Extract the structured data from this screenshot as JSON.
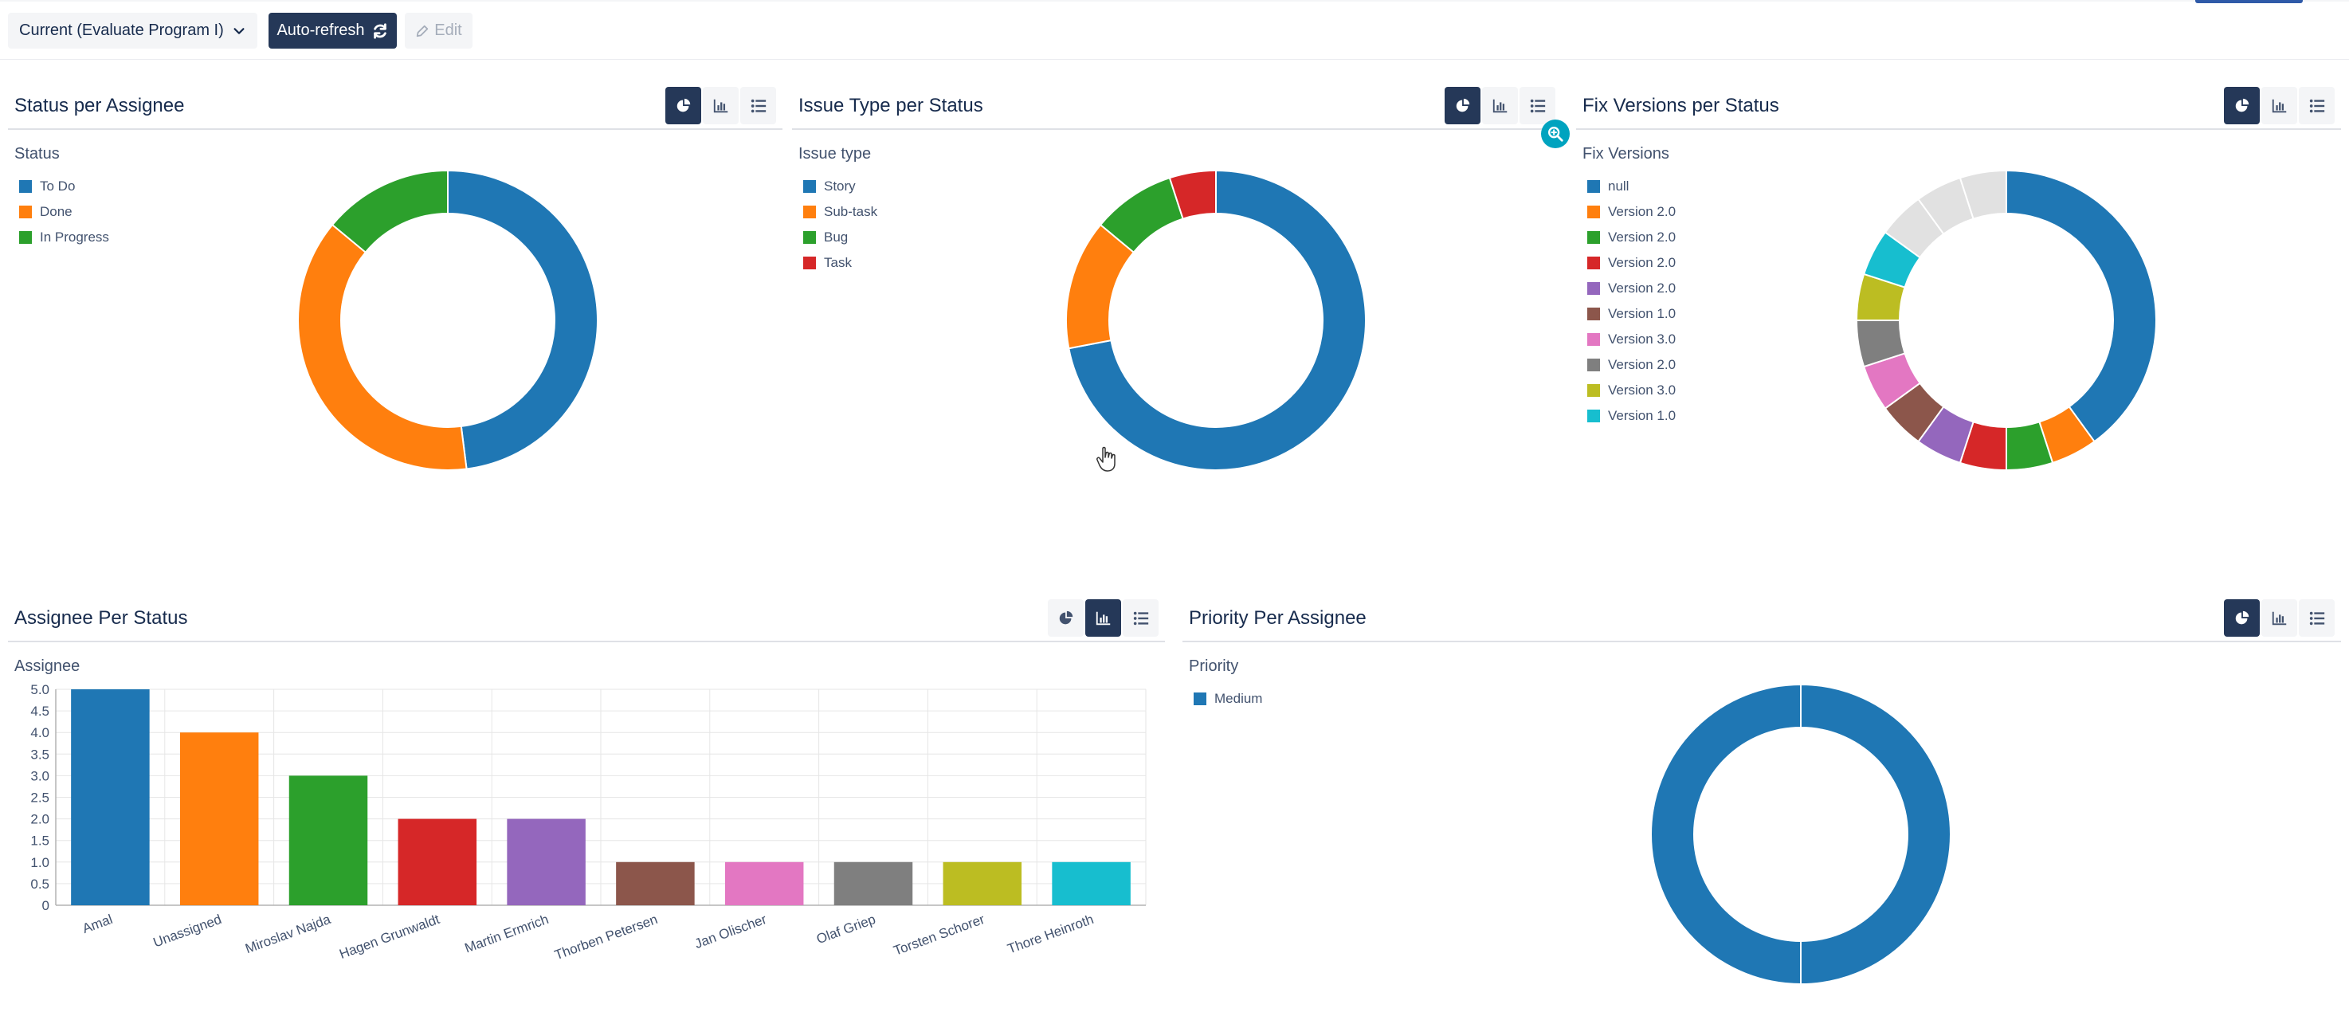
{
  "toolbar": {
    "filter": {
      "selected": "Current (Evaluate Program I)",
      "icon": "chevron-down-icon"
    },
    "refresh_label": "Auto-refresh",
    "refresh_icon": "refresh-icon",
    "edit_label": "Edit",
    "edit_icon": "pencil-icon"
  },
  "view_icons": [
    "pie-chart-icon",
    "bar-chart-icon",
    "list-icon"
  ],
  "panels": [
    {
      "id": "status-per-assignee",
      "title": "Status per Assignee",
      "active_view": "pie",
      "chart_data": {
        "type": "pie",
        "title": "Status",
        "legend": "top-left",
        "donut": true,
        "slices": [
          {
            "label": "To Do",
            "value": 48,
            "color": "#1f77b4"
          },
          {
            "label": "Done",
            "value": 38,
            "color": "#ff7f0e"
          },
          {
            "label": "In Progress",
            "value": 14,
            "color": "#2ca02c"
          }
        ]
      }
    },
    {
      "id": "issue-type-per-status",
      "title": "Issue Type per Status",
      "active_view": "pie",
      "chart_data": {
        "type": "pie",
        "title": "Issue type",
        "legend": "top-left",
        "donut": true,
        "slices": [
          {
            "label": "Story",
            "value": 72,
            "color": "#1f77b4"
          },
          {
            "label": "Sub-task",
            "value": 14,
            "color": "#ff7f0e"
          },
          {
            "label": "Bug",
            "value": 9,
            "color": "#2ca02c"
          },
          {
            "label": "Task",
            "value": 5,
            "color": "#d62728"
          }
        ]
      }
    },
    {
      "id": "fix-versions-per-status",
      "title": "Fix Versions per Status",
      "active_view": "pie",
      "chart_data": {
        "type": "pie",
        "title": "Fix Versions",
        "legend": "top-left",
        "donut": true,
        "slices": [
          {
            "label": "null",
            "value": 40,
            "color": "#1f77b4"
          },
          {
            "label": "Version 2.0",
            "value": 5,
            "color": "#ff7f0e"
          },
          {
            "label": "Version 2.0",
            "value": 5,
            "color": "#2ca02c"
          },
          {
            "label": "Version 2.0",
            "value": 5,
            "color": "#d62728"
          },
          {
            "label": "Version 2.0",
            "value": 5,
            "color": "#9467bd"
          },
          {
            "label": "Version 1.0",
            "value": 5,
            "color": "#8c564b"
          },
          {
            "label": "Version 3.0",
            "value": 5,
            "color": "#e377c2"
          },
          {
            "label": "Version 2.0",
            "value": 5,
            "color": "#7f7f7f"
          },
          {
            "label": "Version 3.0",
            "value": 5,
            "color": "#bcbd22"
          },
          {
            "label": "Version 1.0",
            "value": 5,
            "color": "#17becf"
          },
          {
            "label": "",
            "value": 5,
            "color": "#e1e1e1"
          },
          {
            "label": "",
            "value": 5,
            "color": "#e1e1e1"
          },
          {
            "label": "",
            "value": 5,
            "color": "#e1e1e1"
          }
        ]
      }
    },
    {
      "id": "assignee-per-status",
      "title": "Assignee Per Status",
      "active_view": "bar",
      "chart_data": {
        "type": "bar",
        "title": "Assignee",
        "grid": true,
        "ylim": [
          0,
          5
        ],
        "yticks": [
          "5.0",
          "4.5",
          "4.0",
          "3.5",
          "3.0",
          "2.5",
          "2.0",
          "1.5",
          "1.0",
          "0.5",
          "0"
        ],
        "categories": [
          "Amal",
          "Unassigned",
          "Miroslav Najda",
          "Hagen Grunwaldt",
          "Martin Ermrich",
          "Thorben Petersen",
          "Jan Olischer",
          "Olaf Griep",
          "Torsten Schorer",
          "Thore Heinroth"
        ],
        "values": [
          5,
          4,
          3,
          2,
          2,
          1,
          1,
          1,
          1,
          1
        ],
        "colors": [
          "#1f77b4",
          "#ff7f0e",
          "#2ca02c",
          "#d62728",
          "#9467bd",
          "#8c564b",
          "#e377c2",
          "#7f7f7f",
          "#bcbd22",
          "#17becf"
        ]
      }
    },
    {
      "id": "priority-per-assignee",
      "title": "Priority Per Assignee",
      "active_view": "pie",
      "chart_data": {
        "type": "pie",
        "title": "Priority",
        "legend": "top-left",
        "donut": true,
        "slices": [
          {
            "label": "Medium",
            "value": 100,
            "color": "#1f77b4"
          }
        ]
      }
    }
  ],
  "zoom_icon": "zoom-in-icon",
  "cursor_icon": "hand-pointer-icon"
}
